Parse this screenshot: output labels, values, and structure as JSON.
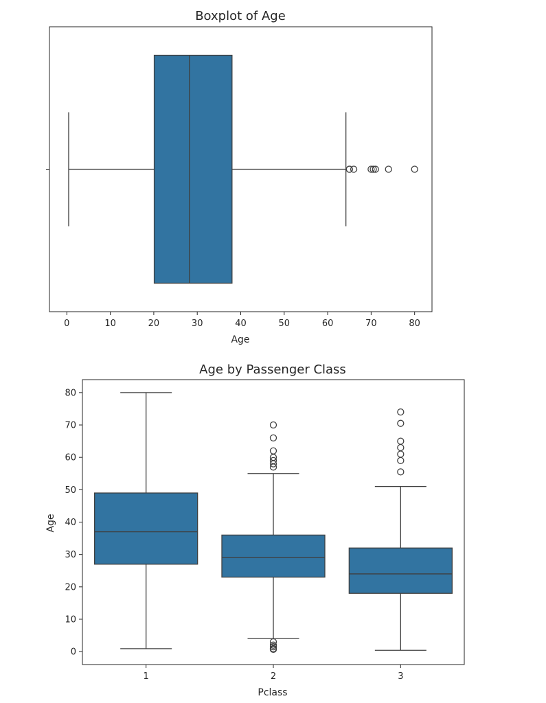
{
  "chart_data": [
    {
      "type": "boxplot",
      "orientation": "horizontal",
      "title": "Boxplot of Age",
      "xlabel": "Age",
      "ylabel": "",
      "xlim": [
        -4,
        84
      ],
      "xticks": [
        0,
        10,
        20,
        30,
        40,
        50,
        60,
        70,
        80
      ],
      "grid": false,
      "color": "#3274a1",
      "boxes": [
        {
          "whisker_low": 0.42,
          "q1": 20.1,
          "median": 28.2,
          "q3": 38.0,
          "whisker_high": 64.2,
          "fliers": [
            65,
            65,
            66,
            70,
            70.5,
            71,
            74,
            80
          ]
        }
      ]
    },
    {
      "type": "boxplot",
      "orientation": "vertical",
      "title": "Age by Passenger Class",
      "xlabel": "Pclass",
      "ylabel": "Age",
      "categories": [
        "1",
        "2",
        "3"
      ],
      "ylim": [
        -4,
        84
      ],
      "yticks": [
        0,
        10,
        20,
        30,
        40,
        50,
        60,
        70,
        80
      ],
      "grid": false,
      "color": "#3274a1",
      "boxes": [
        {
          "whisker_low": 0.9,
          "q1": 27,
          "median": 37,
          "q3": 49,
          "whisker_high": 80,
          "fliers": []
        },
        {
          "whisker_low": 4,
          "q1": 23,
          "median": 29,
          "q3": 36,
          "whisker_high": 55,
          "fliers": [
            0.7,
            0.9,
            1.5,
            2,
            3,
            57,
            58,
            59,
            60,
            62,
            66,
            70
          ]
        },
        {
          "whisker_low": 0.4,
          "q1": 18,
          "median": 24,
          "q3": 32,
          "whisker_high": 51,
          "fliers": [
            55.5,
            59,
            61,
            63,
            65,
            70.5,
            74
          ]
        }
      ]
    }
  ]
}
